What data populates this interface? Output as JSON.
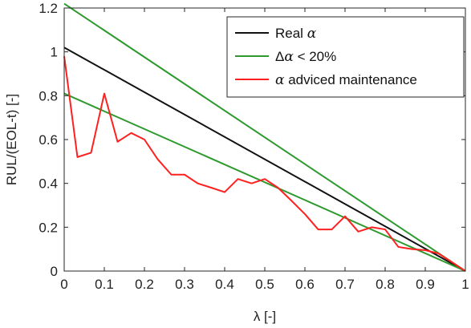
{
  "chart_data": {
    "type": "line",
    "xlabel": "λ [-]",
    "ylabel": "RUL/(EOL-t) [-]",
    "xlim": [
      0,
      1
    ],
    "ylim": [
      0,
      1.2
    ],
    "xticks": [
      0,
      0.1,
      0.2,
      0.3,
      0.4,
      0.5,
      0.6,
      0.7,
      0.8,
      0.9,
      1
    ],
    "xtick_labels": [
      "0",
      "0.1",
      "0.2",
      "0.3",
      "0.4",
      "0.5",
      "0.6",
      "0.7",
      "0.8",
      "0.9",
      "1"
    ],
    "yticks": [
      0,
      0.2,
      0.4,
      0.6,
      0.8,
      1,
      1.2
    ],
    "ytick_labels": [
      "0",
      "0.2",
      "0.4",
      "0.6",
      "0.8",
      "1",
      "1.2"
    ],
    "grid": false,
    "legend_position": "top-right",
    "legend": [
      {
        "label_prefix": "Real ",
        "label_symbol": "α",
        "label_suffix": "",
        "color": "#111111"
      },
      {
        "label_prefix": "Δ",
        "label_symbol": "α",
        "label_suffix": " < 20%",
        "color": "#2e9a2e"
      },
      {
        "label_prefix": "",
        "label_symbol": "α",
        "label_suffix": " adviced maintenance",
        "color": "#ff2020"
      }
    ],
    "series": [
      {
        "color": "#111111",
        "x": [
          0,
          1
        ],
        "y": [
          1.02,
          0
        ]
      },
      {
        "color": "#2e9a2e",
        "x": [
          0,
          1
        ],
        "y": [
          1.22,
          0
        ]
      },
      {
        "color": "#2e9a2e",
        "x": [
          0,
          1
        ],
        "y": [
          0.81,
          0
        ]
      },
      {
        "color": "#ff2020",
        "x": [
          0,
          0.033,
          0.067,
          0.1,
          0.133,
          0.167,
          0.2,
          0.233,
          0.267,
          0.3,
          0.333,
          0.367,
          0.4,
          0.433,
          0.467,
          0.5,
          0.533,
          0.567,
          0.6,
          0.633,
          0.667,
          0.7,
          0.733,
          0.767,
          0.8,
          0.833,
          0.867,
          0.9,
          0.933,
          0.967,
          1
        ],
        "y": [
          0.98,
          0.52,
          0.54,
          0.81,
          0.59,
          0.63,
          0.6,
          0.51,
          0.44,
          0.44,
          0.4,
          0.38,
          0.36,
          0.42,
          0.4,
          0.42,
          0.38,
          0.32,
          0.26,
          0.19,
          0.19,
          0.25,
          0.18,
          0.2,
          0.19,
          0.11,
          0.1,
          0.095,
          0.08,
          0.04,
          0
        ]
      }
    ]
  }
}
